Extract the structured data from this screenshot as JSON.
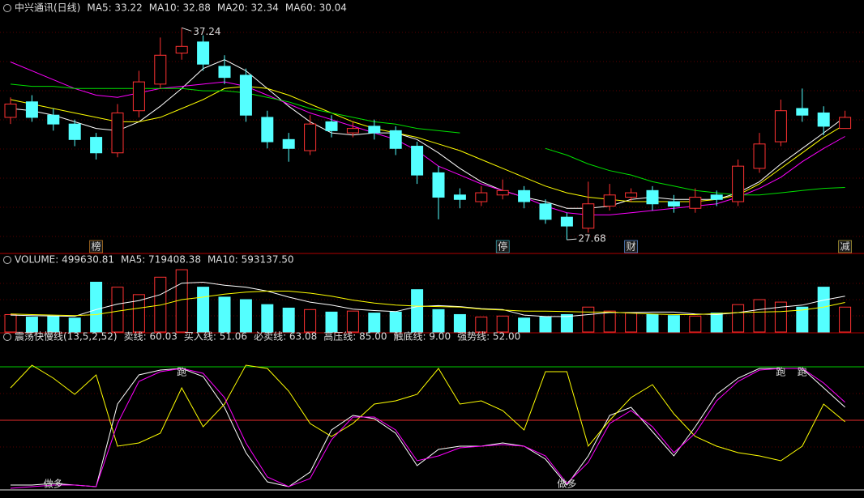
{
  "chart_data": [
    {
      "type": "candlestick",
      "title": "中兴通讯(日线)",
      "open": [
        33.2,
        33.9,
        33.3,
        32.9,
        32.3,
        31.6,
        33.5,
        34.7,
        36.1,
        36.6,
        35.5,
        35.1,
        33.2,
        32.2,
        31.7,
        33.0,
        32.5,
        32.8,
        32.6,
        31.9,
        30.7,
        29.7,
        29.4,
        29.7,
        29.9,
        29.3,
        28.7,
        28.2,
        29.2,
        29.6,
        29.9,
        29.4,
        29.1,
        29.7,
        29.4,
        30.9,
        32.1,
        33.6,
        33.4,
        32.7
      ],
      "high": [
        34.1,
        34.2,
        33.6,
        33.1,
        32.5,
        33.8,
        35.3,
        36.8,
        37.24,
        36.9,
        36.0,
        35.4,
        33.5,
        32.5,
        33.3,
        33.3,
        33.0,
        33.1,
        32.8,
        32.1,
        31.0,
        30.0,
        30.1,
        30.4,
        30.1,
        29.5,
        28.9,
        30.3,
        30.2,
        30.0,
        30.1,
        29.7,
        30.0,
        29.9,
        31.3,
        32.5,
        34.0,
        34.5,
        33.7,
        33.5
      ],
      "low": [
        32.9,
        33.0,
        32.6,
        31.9,
        31.3,
        31.4,
        33.2,
        34.5,
        35.8,
        35.3,
        34.7,
        33.0,
        31.8,
        31.2,
        31.5,
        32.3,
        32.3,
        32.2,
        31.5,
        30.2,
        28.6,
        29.1,
        29.2,
        29.5,
        29.1,
        28.4,
        27.68,
        28.0,
        29.0,
        29.4,
        29.0,
        28.9,
        28.9,
        29.2,
        29.2,
        30.7,
        31.9,
        33.0,
        32.4,
        32.8
      ],
      "close": [
        33.8,
        33.2,
        32.9,
        32.2,
        31.6,
        33.4,
        34.8,
        36.0,
        36.4,
        35.6,
        35.0,
        33.3,
        32.1,
        31.8,
        32.9,
        32.6,
        32.7,
        32.5,
        31.8,
        30.6,
        29.6,
        29.5,
        29.8,
        29.9,
        29.4,
        28.6,
        28.3,
        29.3,
        29.7,
        29.8,
        29.3,
        29.2,
        29.6,
        29.5,
        31.0,
        32.0,
        33.5,
        33.3,
        32.8,
        33.2
      ],
      "up_color": "#ff3232",
      "down_color": "#54ffff",
      "ylim": [
        27.1,
        38.2
      ],
      "series": [
        {
          "name": "MA5: 33.22",
          "color": "#ffffff",
          "values": [
            33.6,
            33.5,
            33.3,
            33.0,
            32.7,
            32.6,
            33.0,
            33.7,
            34.5,
            35.4,
            35.8,
            35.3,
            34.5,
            33.7,
            33.0,
            32.5,
            32.4,
            32.5,
            32.5,
            32.2,
            31.6,
            30.9,
            30.3,
            29.9,
            29.6,
            29.4,
            29.1,
            29.1,
            29.2,
            29.5,
            29.6,
            29.5,
            29.5,
            29.5,
            29.8,
            30.3,
            31.1,
            31.8,
            32.5,
            33.22
          ]
        },
        {
          "name": "MA10: 32.88",
          "color": "#ffff00",
          "values": [
            34.0,
            33.8,
            33.6,
            33.4,
            33.2,
            33.0,
            33.0,
            33.2,
            33.6,
            34.0,
            34.5,
            34.6,
            34.5,
            34.2,
            33.8,
            33.4,
            33.0,
            32.7,
            32.5,
            32.3,
            32.0,
            31.7,
            31.3,
            30.9,
            30.5,
            30.1,
            29.8,
            29.6,
            29.5,
            29.4,
            29.4,
            29.4,
            29.4,
            29.5,
            29.7,
            30.2,
            30.9,
            31.6,
            32.3,
            32.88
          ]
        },
        {
          "name": "MA20: 32.34",
          "color": "#ff00ff",
          "values": [
            35.7,
            35.3,
            34.9,
            34.5,
            34.2,
            34.1,
            34.3,
            34.5,
            34.6,
            34.7,
            34.8,
            34.6,
            34.2,
            33.8,
            33.4,
            33.1,
            32.8,
            32.5,
            32.2,
            31.7,
            31.0,
            30.6,
            30.2,
            29.9,
            29.6,
            29.2,
            28.9,
            28.8,
            28.8,
            28.9,
            29.0,
            29.1,
            29.2,
            29.3,
            29.6,
            30.0,
            30.5,
            31.2,
            31.8,
            32.34
          ]
        },
        {
          "name": "MA60: 30.04",
          "color": "#00e000",
          "values": [
            34.7,
            34.6,
            34.6,
            34.5,
            34.5,
            34.5,
            34.5,
            34.5,
            34.5,
            34.4,
            34.4,
            34.3,
            34.1,
            33.9,
            33.6,
            33.4,
            33.2,
            33.0,
            32.9,
            32.7,
            32.6,
            32.5,
            null,
            null,
            null,
            31.8,
            31.5,
            31.1,
            30.8,
            30.6,
            30.3,
            30.1,
            29.9,
            29.8,
            29.7,
            29.7,
            29.8,
            29.9,
            30.0,
            30.04
          ]
        }
      ],
      "tags": [
        null,
        null,
        null,
        null,
        "榜",
        null,
        null,
        null,
        null,
        null,
        null,
        null,
        null,
        null,
        null,
        null,
        null,
        null,
        null,
        null,
        null,
        null,
        null,
        "停",
        null,
        null,
        null,
        null,
        null,
        "财",
        null,
        null,
        null,
        null,
        null,
        null,
        null,
        null,
        null,
        "减"
      ],
      "tag_colors": [
        null,
        null,
        null,
        null,
        "#e0902a",
        null,
        null,
        null,
        null,
        null,
        null,
        null,
        null,
        null,
        null,
        null,
        null,
        null,
        null,
        null,
        null,
        null,
        null,
        "#3fc8d8",
        null,
        null,
        null,
        null,
        null,
        "#6aa8ff",
        null,
        null,
        null,
        null,
        null,
        null,
        null,
        null,
        null,
        "#d8c040"
      ]
    },
    {
      "type": "bar",
      "ylim": [
        0,
        1300000
      ],
      "series": [
        {
          "name": "VOLUME: 499630.81",
          "type": "bar",
          "values": [
            350000,
            300000,
            320000,
            280000,
            1000000,
            900000,
            750000,
            1100000,
            1250000,
            900000,
            700000,
            650000,
            550000,
            480000,
            450000,
            400000,
            420000,
            380000,
            400000,
            850000,
            450000,
            350000,
            300000,
            320000,
            280000,
            300000,
            350000,
            500000,
            420000,
            380000,
            350000,
            330000,
            320000,
            380000,
            550000,
            650000,
            600000,
            500000,
            900000,
            499630.81
          ]
        },
        {
          "name": "MA5: 719408.38",
          "type": "line",
          "color": "#ffffff",
          "values": [
            340000,
            330000,
            320000,
            315000,
            450000,
            560000,
            630000,
            750000,
            980000,
            1000000,
            940000,
            900000,
            820000,
            700000,
            600000,
            540000,
            460000,
            430000,
            410000,
            510000,
            530000,
            510000,
            470000,
            450000,
            340000,
            310000,
            310000,
            350000,
            390000,
            390000,
            400000,
            400000,
            360000,
            350000,
            390000,
            450000,
            500000,
            540000,
            640000,
            719408.38
          ]
        },
        {
          "name": "MA10: 593137.50",
          "type": "line",
          "color": "#ffff00",
          "values": [
            360000,
            350000,
            340000,
            330000,
            350000,
            420000,
            480000,
            540000,
            650000,
            700000,
            760000,
            800000,
            820000,
            820000,
            780000,
            720000,
            640000,
            580000,
            540000,
            520000,
            510000,
            500000,
            460000,
            440000,
            420000,
            420000,
            410000,
            400000,
            400000,
            380000,
            360000,
            350000,
            350000,
            370000,
            390000,
            400000,
            410000,
            440000,
            500000,
            593137.5
          ]
        }
      ]
    },
    {
      "type": "line",
      "title": "震荡快慢线(13,5,2,52)",
      "ylim": [
        4,
        105
      ],
      "series": [
        {
          "name": "卖线: 60.03",
          "color": "#ffffff",
          "values": [
            12,
            12,
            13,
            12,
            11,
            62,
            80,
            83,
            84,
            79,
            60,
            32,
            14,
            11,
            20,
            46,
            55,
            53,
            44,
            24,
            34,
            36,
            36,
            38,
            36,
            28,
            12,
            30,
            55,
            60,
            45,
            30,
            48,
            68,
            78,
            84,
            84,
            84,
            72,
            60.03
          ]
        },
        {
          "name": "买入线: 51.06",
          "color": "#ffff00",
          "values": [
            72,
            86,
            78,
            68,
            80,
            36,
            38,
            44,
            72,
            48,
            62,
            86,
            84,
            70,
            50,
            42,
            50,
            62,
            64,
            68,
            84,
            62,
            64,
            58,
            46,
            82,
            82,
            36,
            52,
            66,
            74,
            56,
            42,
            36,
            32,
            30,
            27,
            36,
            62,
            51.06
          ]
        },
        {
          "name": "必卖线: 63.08",
          "color": "#ff00ff",
          "values": [
            10,
            11,
            12,
            12,
            11,
            50,
            76,
            82,
            84,
            81,
            66,
            38,
            17,
            11,
            16,
            40,
            54,
            54,
            46,
            27,
            30,
            35,
            36,
            37,
            36,
            30,
            13,
            26,
            50,
            58,
            48,
            32,
            44,
            64,
            76,
            83,
            84,
            84,
            75,
            63.08
          ]
        }
      ],
      "hlines": [
        {
          "name": "高压线: 85.00",
          "value": 85,
          "color": "#00e000"
        },
        {
          "name": "触底线: 9.00",
          "value": 9,
          "color": "#ffffff"
        },
        {
          "name": "强势线: 52.00",
          "value": 52,
          "color": "#ff3232"
        }
      ],
      "top_signals": [
        null,
        null,
        null,
        null,
        null,
        null,
        null,
        null,
        "跑",
        null,
        null,
        null,
        null,
        null,
        null,
        null,
        null,
        null,
        null,
        null,
        null,
        null,
        null,
        null,
        null,
        null,
        null,
        null,
        null,
        null,
        null,
        null,
        null,
        null,
        null,
        null,
        "跑",
        "跑",
        null,
        null
      ],
      "top_signal_color": "#00e000",
      "bottom_signals": [
        null,
        null,
        "做多",
        null,
        null,
        null,
        null,
        null,
        null,
        null,
        null,
        null,
        null,
        null,
        null,
        null,
        null,
        null,
        null,
        null,
        null,
        null,
        null,
        null,
        null,
        null,
        "做多",
        null,
        null,
        null,
        null,
        null,
        null,
        null,
        null,
        null,
        null,
        null,
        null,
        null
      ],
      "bottom_signal_color": "#ffffff"
    }
  ]
}
